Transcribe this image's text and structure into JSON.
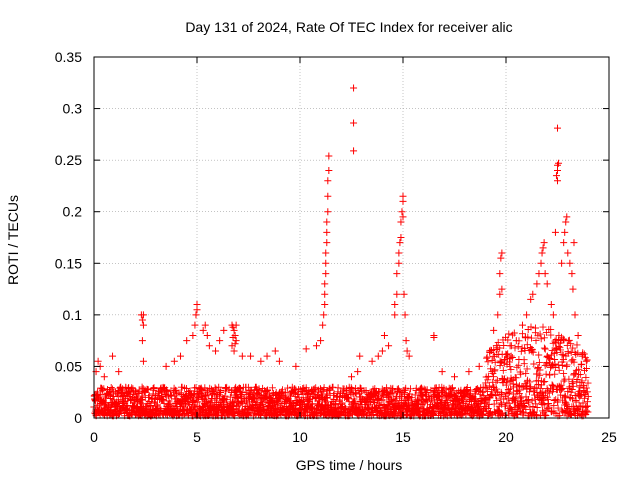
{
  "chart_data": {
    "type": "scatter",
    "title": "Day 131 of 2024, Rate Of TEC Index for receiver alic",
    "xlabel": "GPS time / hours",
    "ylabel": "ROTI / TECUs",
    "xlim": [
      0,
      25
    ],
    "ylim": [
      0,
      0.35
    ],
    "xticks": [
      0,
      5,
      10,
      15,
      20,
      25
    ],
    "xtick_labels": [
      "0",
      "5",
      "10",
      "15",
      "20",
      "25"
    ],
    "yticks": [
      0,
      0.05,
      0.1,
      0.15,
      0.2,
      0.25,
      0.3,
      0.35
    ],
    "ytick_labels": [
      "0",
      "0.05",
      "0.1",
      "0.15",
      "0.2",
      "0.25",
      "0.3",
      "0.35"
    ],
    "grid": true,
    "marker": "+",
    "color": "#ff0000",
    "series": [
      {
        "name": "ROTI",
        "points": [
          [
            0.1,
            0.045
          ],
          [
            0.2,
            0.055
          ],
          [
            0.3,
            0.05
          ],
          [
            0.5,
            0.04
          ],
          [
            0.9,
            0.06
          ],
          [
            1.2,
            0.045
          ],
          [
            2.3,
            0.1
          ],
          [
            2.35,
            0.095
          ],
          [
            2.4,
            0.09
          ],
          [
            2.4,
            0.1
          ],
          [
            2.35,
            0.075
          ],
          [
            2.4,
            0.055
          ],
          [
            3.5,
            0.05
          ],
          [
            3.9,
            0.055
          ],
          [
            4.2,
            0.06
          ],
          [
            4.5,
            0.075
          ],
          [
            4.8,
            0.08
          ],
          [
            4.9,
            0.09
          ],
          [
            4.95,
            0.1
          ],
          [
            5.0,
            0.11
          ],
          [
            5.0,
            0.105
          ],
          [
            5.3,
            0.085
          ],
          [
            5.4,
            0.09
          ],
          [
            5.5,
            0.08
          ],
          [
            5.6,
            0.07
          ],
          [
            5.9,
            0.065
          ],
          [
            6.1,
            0.075
          ],
          [
            6.3,
            0.085
          ],
          [
            6.7,
            0.09
          ],
          [
            6.75,
            0.088
          ],
          [
            6.8,
            0.085
          ],
          [
            6.85,
            0.08
          ],
          [
            6.9,
            0.075
          ],
          [
            6.7,
            0.07
          ],
          [
            6.8,
            0.065
          ],
          [
            6.9,
            0.09
          ],
          [
            6.75,
            0.078
          ],
          [
            6.85,
            0.072
          ],
          [
            7.2,
            0.06
          ],
          [
            7.6,
            0.06
          ],
          [
            8.1,
            0.055
          ],
          [
            8.4,
            0.06
          ],
          [
            8.8,
            0.065
          ],
          [
            9.0,
            0.055
          ],
          [
            9.8,
            0.05
          ],
          [
            10.3,
            0.067
          ],
          [
            10.8,
            0.07
          ],
          [
            11.0,
            0.075
          ],
          [
            11.1,
            0.09
          ],
          [
            11.15,
            0.1
          ],
          [
            11.2,
            0.11
          ],
          [
            11.2,
            0.12
          ],
          [
            11.2,
            0.13
          ],
          [
            11.25,
            0.14
          ],
          [
            11.25,
            0.15
          ],
          [
            11.25,
            0.16
          ],
          [
            11.3,
            0.17
          ],
          [
            11.3,
            0.18
          ],
          [
            11.3,
            0.19
          ],
          [
            11.35,
            0.2
          ],
          [
            11.35,
            0.215
          ],
          [
            11.35,
            0.23
          ],
          [
            11.4,
            0.24
          ],
          [
            11.4,
            0.254
          ],
          [
            12.6,
            0.32
          ],
          [
            12.6,
            0.286
          ],
          [
            12.6,
            0.259
          ],
          [
            12.8,
            0.045
          ],
          [
            12.5,
            0.04
          ],
          [
            12.9,
            0.06
          ],
          [
            13.5,
            0.055
          ],
          [
            13.8,
            0.06
          ],
          [
            14.0,
            0.065
          ],
          [
            14.1,
            0.08
          ],
          [
            14.3,
            0.07
          ],
          [
            14.6,
            0.1
          ],
          [
            14.6,
            0.11
          ],
          [
            14.7,
            0.12
          ],
          [
            14.7,
            0.14
          ],
          [
            14.8,
            0.15
          ],
          [
            14.8,
            0.16
          ],
          [
            14.85,
            0.17
          ],
          [
            14.9,
            0.175
          ],
          [
            14.9,
            0.19
          ],
          [
            14.95,
            0.2
          ],
          [
            15.0,
            0.21
          ],
          [
            15.0,
            0.215
          ],
          [
            15.0,
            0.195
          ],
          [
            15.05,
            0.12
          ],
          [
            15.1,
            0.1
          ],
          [
            15.15,
            0.075
          ],
          [
            15.2,
            0.065
          ],
          [
            15.3,
            0.06
          ],
          [
            16.5,
            0.08
          ],
          [
            16.5,
            0.078
          ],
          [
            16.9,
            0.045
          ],
          [
            17.5,
            0.04
          ],
          [
            18.2,
            0.045
          ],
          [
            18.7,
            0.05
          ],
          [
            19.2,
            0.065
          ],
          [
            19.4,
            0.085
          ],
          [
            19.6,
            0.1
          ],
          [
            19.7,
            0.12
          ],
          [
            19.7,
            0.14
          ],
          [
            19.75,
            0.155
          ],
          [
            19.8,
            0.16
          ],
          [
            19.8,
            0.125
          ],
          [
            20.2,
            0.07
          ],
          [
            20.5,
            0.075
          ],
          [
            20.8,
            0.09
          ],
          [
            21.0,
            0.1
          ],
          [
            21.2,
            0.115
          ],
          [
            21.3,
            0.12
          ],
          [
            21.5,
            0.13
          ],
          [
            21.6,
            0.14
          ],
          [
            21.7,
            0.15
          ],
          [
            21.75,
            0.16
          ],
          [
            21.8,
            0.165
          ],
          [
            21.85,
            0.17
          ],
          [
            21.9,
            0.14
          ],
          [
            22.0,
            0.13
          ],
          [
            22.2,
            0.11
          ],
          [
            22.3,
            0.1
          ],
          [
            22.4,
            0.18
          ],
          [
            22.45,
            0.235
          ],
          [
            22.5,
            0.23
          ],
          [
            22.5,
            0.24
          ],
          [
            22.5,
            0.245
          ],
          [
            22.55,
            0.247
          ],
          [
            22.5,
            0.281
          ],
          [
            22.7,
            0.15
          ],
          [
            22.8,
            0.17
          ],
          [
            22.85,
            0.18
          ],
          [
            22.9,
            0.19
          ],
          [
            22.95,
            0.195
          ],
          [
            23.0,
            0.16
          ],
          [
            23.1,
            0.15
          ],
          [
            23.2,
            0.14
          ],
          [
            23.25,
            0.125
          ],
          [
            23.3,
            0.17
          ],
          [
            23.35,
            0.1
          ],
          [
            23.5,
            0.08
          ],
          [
            23.7,
            0.06
          ],
          [
            23.9,
            0.055
          ]
        ]
      }
    ]
  }
}
